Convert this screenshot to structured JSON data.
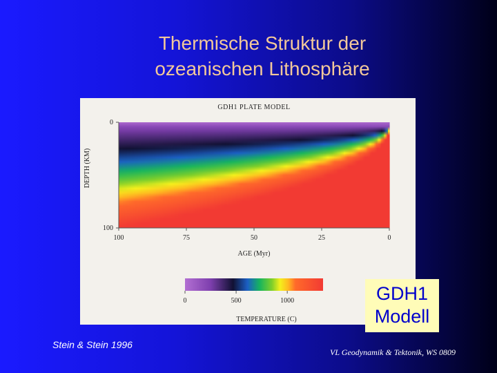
{
  "slide": {
    "title_line1": "Thermische Struktur der",
    "title_line2": "ozeanischen Lithosphäre",
    "citation": "Stein & Stein 1996",
    "footer": "VL Geodynamik & Tektonik, WS 0809",
    "label_box_line1": "GDH1",
    "label_box_line2": "Modell"
  },
  "chart_data": {
    "type": "heatmap",
    "title": "GDH1 PLATE MODEL",
    "xlabel": "AGE (Myr)",
    "ylabel": "DEPTH (KM)",
    "x_reversed": true,
    "y_reversed": true,
    "x_ticks": [
      {
        "value": 100,
        "label": "100"
      },
      {
        "value": 75,
        "label": "75"
      },
      {
        "value": 50,
        "label": "50"
      },
      {
        "value": 25,
        "label": "25"
      },
      {
        "value": 0,
        "label": "0"
      }
    ],
    "y_ticks": [
      {
        "value": 0,
        "label": "0"
      },
      {
        "value": 100,
        "label": "100"
      }
    ],
    "xlim": [
      100,
      0
    ],
    "ylim": [
      0,
      100
    ],
    "colorbar": {
      "label": "TEMPERATURE (C)",
      "ticks": [
        {
          "value": 0,
          "label": "0"
        },
        {
          "value": 500,
          "label": "500"
        },
        {
          "value": 1000,
          "label": "1000"
        }
      ],
      "range": [
        0,
        1350
      ],
      "stops": [
        {
          "value": 0,
          "color": "#b26fd2"
        },
        {
          "value": 250,
          "color": "#7e3fae"
        },
        {
          "value": 470,
          "color": "#111133"
        },
        {
          "value": 610,
          "color": "#1b5fc4"
        },
        {
          "value": 730,
          "color": "#16b45e"
        },
        {
          "value": 850,
          "color": "#7fcf2a"
        },
        {
          "value": 930,
          "color": "#f4f01c"
        },
        {
          "value": 1010,
          "color": "#ffb820"
        },
        {
          "value": 1080,
          "color": "#ff6a2a"
        },
        {
          "value": 1350,
          "color": "#f23a33"
        }
      ]
    }
  }
}
